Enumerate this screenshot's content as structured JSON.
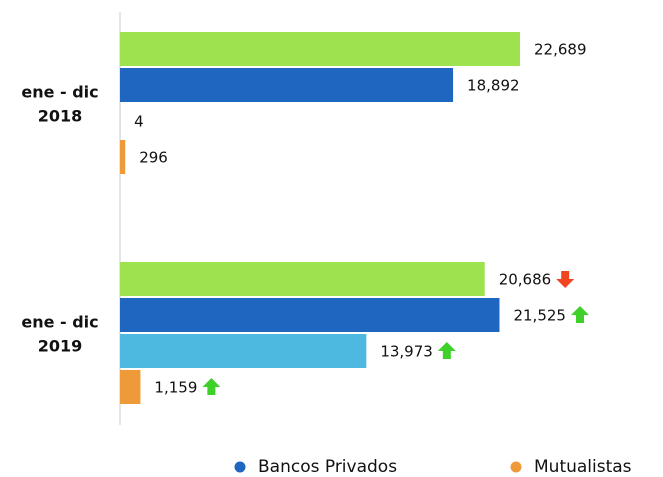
{
  "chart_data": {
    "type": "hbar",
    "categories": [
      [
        "ene - dic",
        "2018"
      ],
      [
        "ene - dic",
        "2019"
      ]
    ],
    "series": [
      {
        "color": "#9de24f",
        "values": [
          22689,
          20686
        ],
        "value_labels": [
          "22,689",
          "20,686"
        ],
        "trend": [
          null,
          "down"
        ]
      },
      {
        "name": "Bancos Privados",
        "color": "#1f66c1",
        "values": [
          18892,
          21525
        ],
        "value_labels": [
          "18,892",
          "21,525"
        ],
        "trend": [
          null,
          "up"
        ]
      },
      {
        "color": "#4db8e0",
        "values": [
          4,
          13973
        ],
        "value_labels": [
          "4",
          "13,973"
        ],
        "trend": [
          null,
          "up"
        ]
      },
      {
        "name": "Mutualistas",
        "color": "#ef9a38",
        "values": [
          296,
          1159
        ],
        "value_labels": [
          "296",
          "1,159"
        ],
        "trend": [
          null,
          "up"
        ]
      }
    ],
    "up_color": "#3fd12a",
    "down_color": "#f0451f"
  }
}
